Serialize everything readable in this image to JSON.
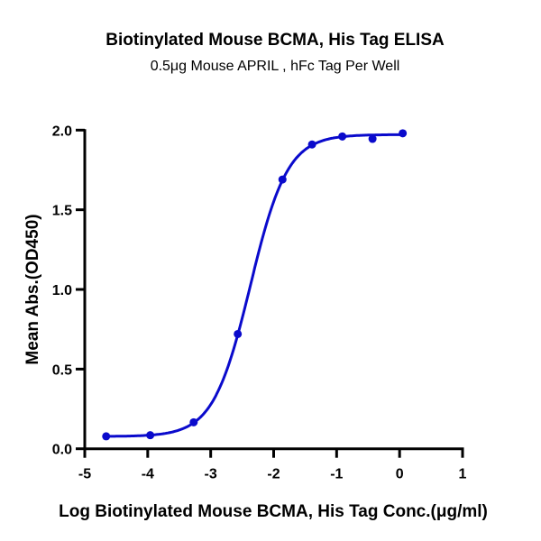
{
  "chart_data": {
    "type": "scatter",
    "title": "Biotinylated Mouse BCMA, His Tag ELISA",
    "subtitle": "0.5μg Mouse APRIL , hFc Tag Per Well",
    "xlabel": "Log Biotinylated Mouse BCMA, His Tag Conc.(μg/ml)",
    "ylabel": "Mean Abs.(OD450)",
    "xlim": [
      -5,
      1
    ],
    "ylim": [
      0,
      2.0
    ],
    "xticks": [
      "-5",
      "-4",
      "-3",
      "-2",
      "-1",
      "0",
      "1"
    ],
    "yticks": [
      "0.0",
      "0.5",
      "1.0",
      "1.5",
      "2.0"
    ],
    "grid": false,
    "color": "#0a0acc",
    "fit": "4-parameter logistic curve",
    "x": [
      -4.66,
      -3.96,
      -3.27,
      -2.57,
      -1.86,
      -1.39,
      -0.91,
      -0.43,
      0.05
    ],
    "y": [
      0.078,
      0.085,
      0.166,
      0.72,
      1.69,
      1.91,
      1.96,
      1.945,
      1.98
    ]
  }
}
